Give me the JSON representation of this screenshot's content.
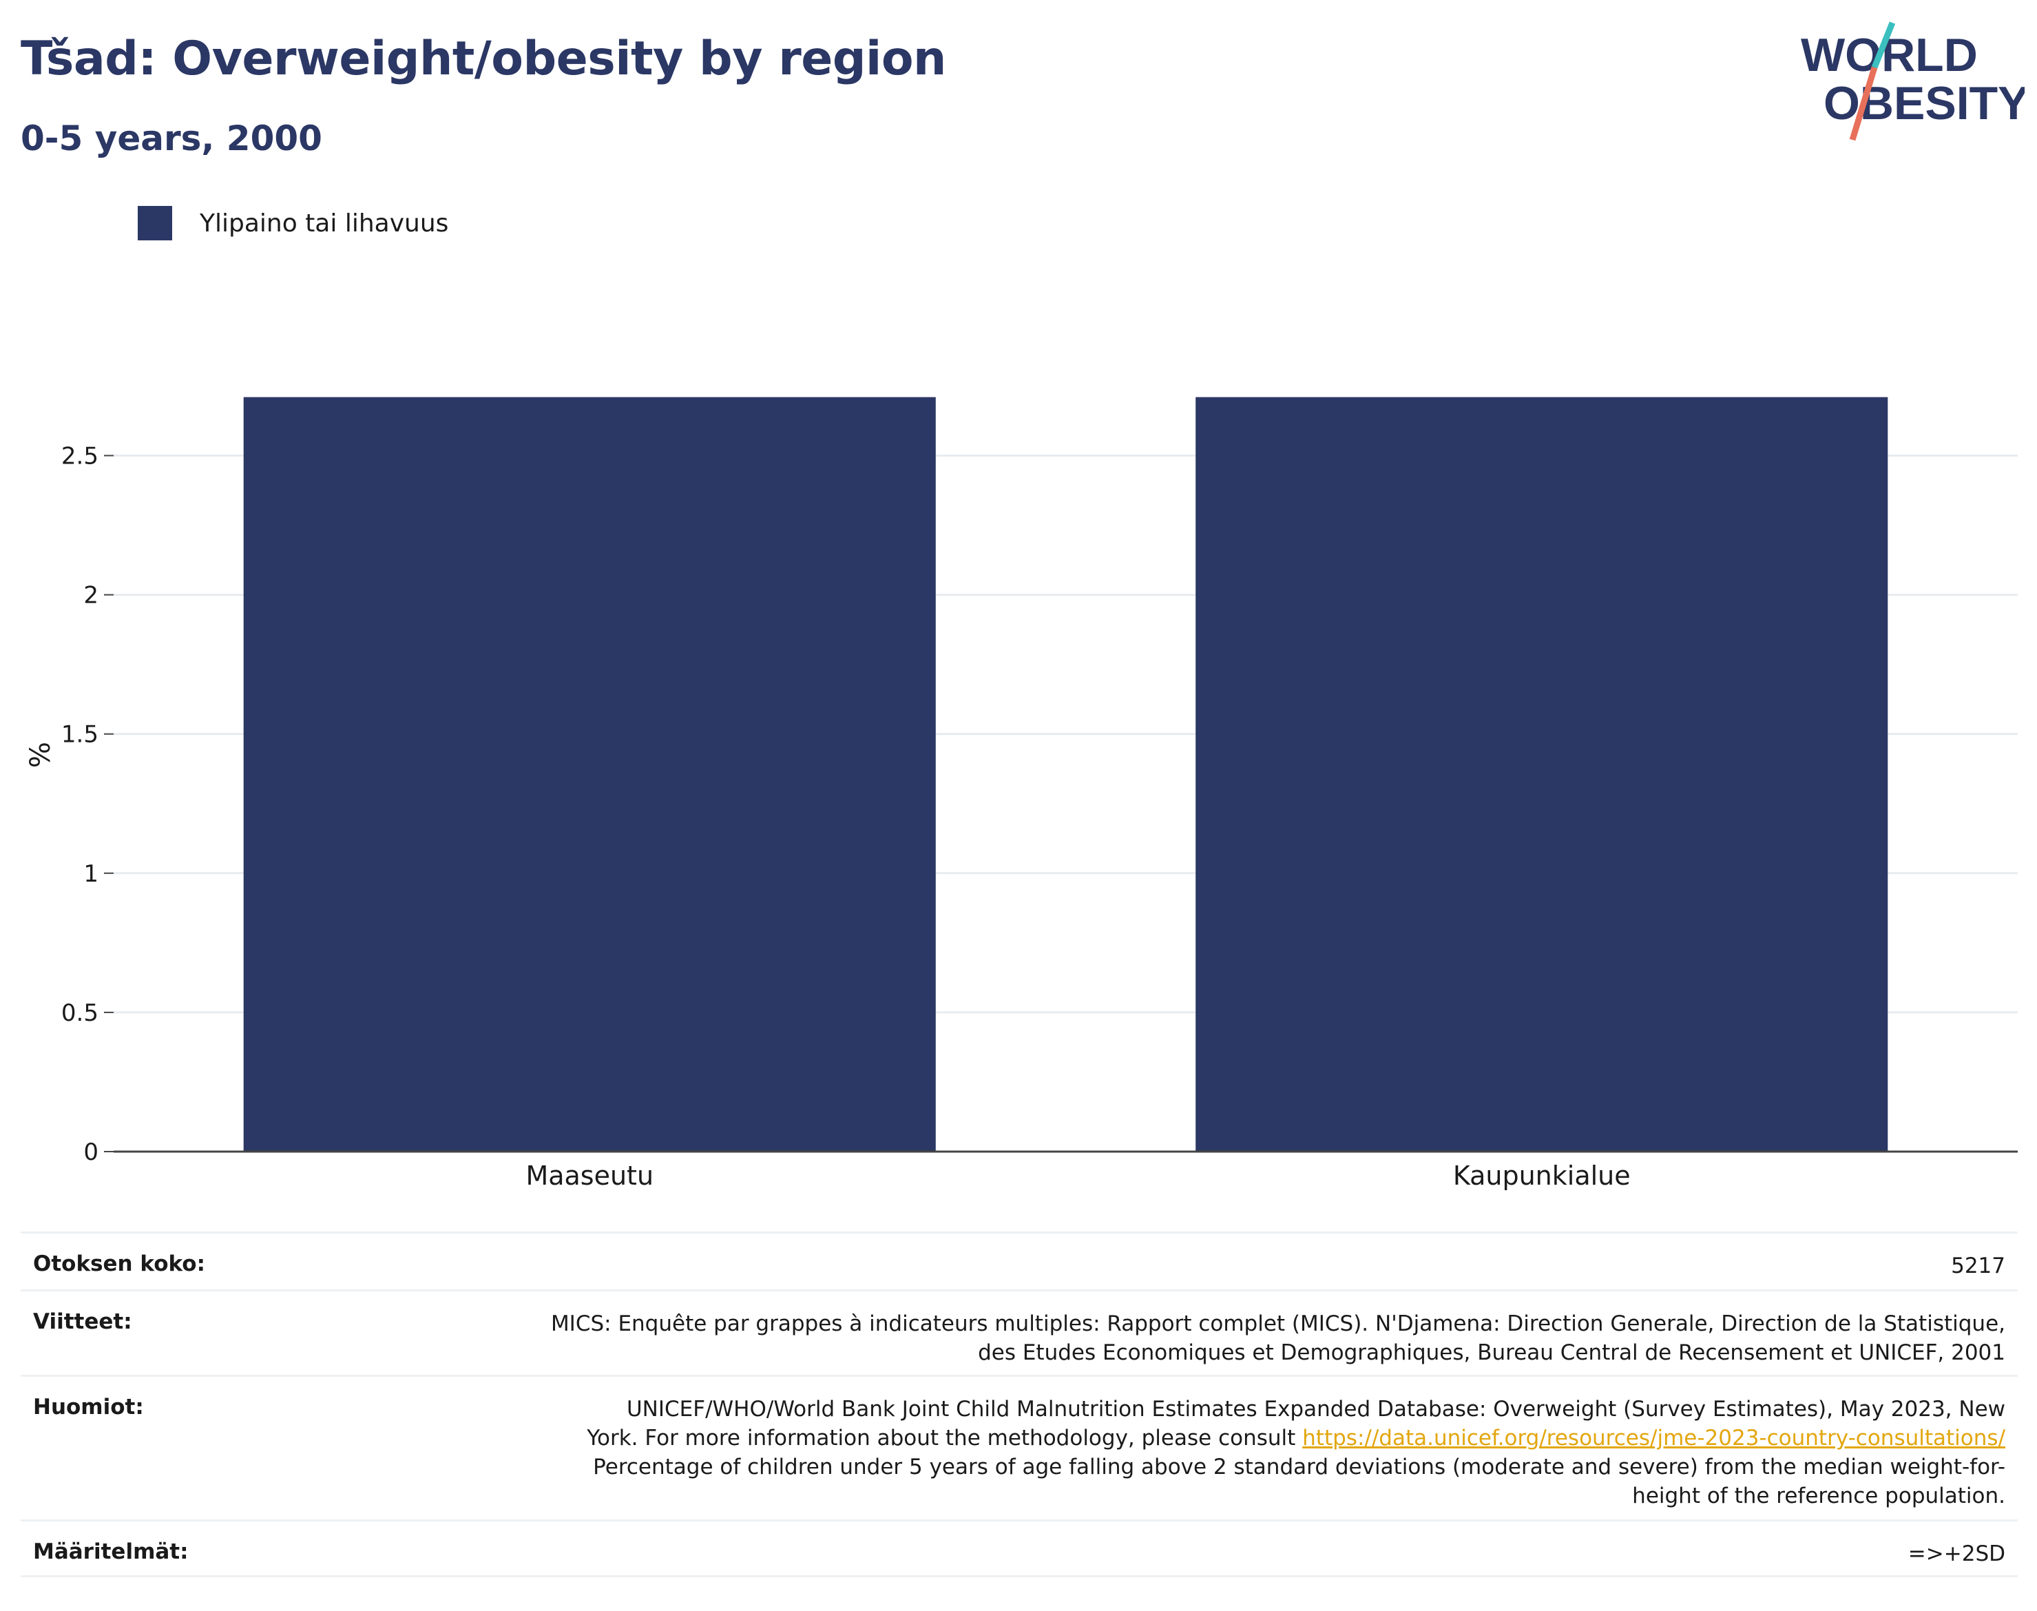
{
  "header": {
    "title": "Tšad: Overweight/obesity by region",
    "subtitle": "0-5 years, 2000"
  },
  "logo": {
    "text_line1": "WORLD",
    "text_line2": "OBESITY",
    "colors": {
      "text": "#2b3764",
      "slash_top": "#3bbfbf",
      "slash_bottom": "#e8705a"
    }
  },
  "legend": {
    "items": [
      {
        "label": "Ylipaino tai lihavuus",
        "color": "#2b3764"
      }
    ]
  },
  "chart_data": {
    "type": "bar",
    "categories": [
      "Maaseutu",
      "Kaupunkialue"
    ],
    "series": [
      {
        "name": "Ylipaino tai lihavuus",
        "values": [
          2.71,
          2.71
        ],
        "color": "#2b3764"
      }
    ],
    "ylabel": "%",
    "xlabel": "",
    "ylim": [
      0,
      2.85
    ],
    "yticks": [
      0,
      0.5,
      1,
      1.5,
      2,
      2.5
    ],
    "ytick_labels": [
      "0",
      "0.5",
      "1",
      "1.5",
      "2",
      "2.5"
    ],
    "grid": true,
    "legend_position": "top-left"
  },
  "meta": {
    "sample_size_label": "Otoksen koko:",
    "sample_size_value": "5217",
    "references_label": "Viitteet:",
    "references_line1": "MICS: Enquête par grappes à indicateurs multiples: Rapport complet (MICS). N'Djamena: Direction Generale, Direction de la Statistique,",
    "references_line2": "des Etudes Economiques et Demographiques, Bureau Central de Recensement et UNICEF, 2001",
    "notes_label": "Huomiot:",
    "notes_line1": "UNICEF/WHO/World Bank Joint Child Malnutrition Estimates Expanded Database: Overweight (Survey Estimates), May 2023, New",
    "notes_line2_prefix": "York. For more information about the methodology, please consult ",
    "notes_link": "https://data.unicef.org/resources/jme-2023-country-consultations/",
    "notes_line3": "Percentage of children under 5 years of age falling above 2 standard deviations (moderate and severe) from the median weight-for-",
    "notes_line4": "height of the reference population.",
    "definitions_label": "Määritelmät:",
    "definitions_value": "=>+2SD"
  }
}
